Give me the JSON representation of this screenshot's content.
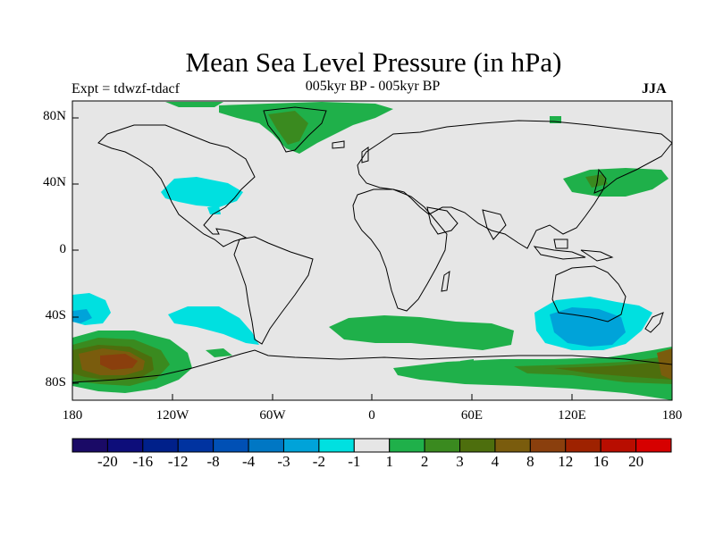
{
  "header": {
    "title": "Mean Sea Level Pressure (in hPa)",
    "left_subtitle": "Expt = tdwzf-tdacf",
    "center_subtitle": "005kyr BP - 005kyr BP",
    "right_subtitle": "JJA"
  },
  "map": {
    "projection": "cylindrical equidistant",
    "lat_ticks": [
      "80N",
      "40N",
      "0",
      "40S",
      "80S"
    ],
    "lon_ticks": [
      "180",
      "120W",
      "60W",
      "0",
      "60E",
      "120E",
      "180"
    ],
    "background_color": "#e6e6e6",
    "coastline_color": "#000000"
  },
  "colorbar": {
    "labels": [
      "-20",
      "-16",
      "-12",
      "-8",
      "-4",
      "-3",
      "-2",
      "-1",
      "1",
      "2",
      "3",
      "4",
      "8",
      "12",
      "16",
      "20"
    ],
    "colors": [
      "#1a0a66",
      "#0d0d7a",
      "#00208a",
      "#0033a0",
      "#0050b5",
      "#0077c4",
      "#00a3d9",
      "#00e0e0",
      "#e6e6e6",
      "#1fb04a",
      "#3a8a1f",
      "#4d6e0d",
      "#7a5c0d",
      "#8a3f0d",
      "#9e2200",
      "#b80d00",
      "#d60000"
    ]
  }
}
